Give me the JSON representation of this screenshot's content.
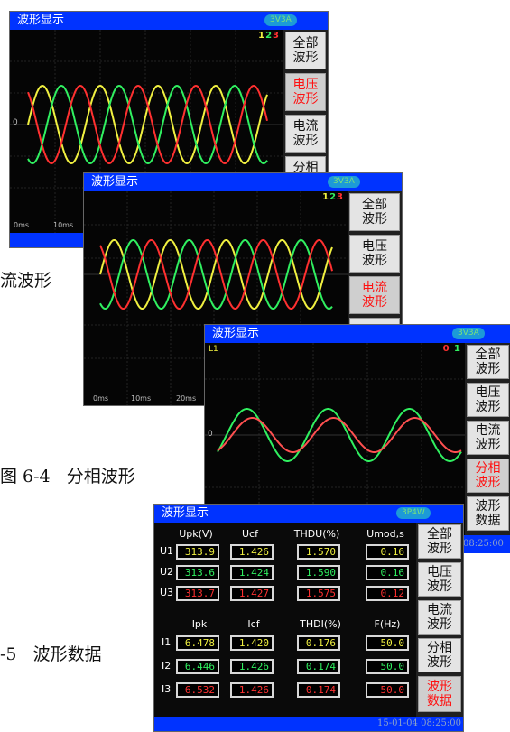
{
  "captions": {
    "c3_frag": "流波形",
    "c4": "图 6-4   分相波形",
    "c5": "-5   波形数据"
  },
  "clock_tail": "08:25:00",
  "screen1": {
    "title": "波形显示",
    "badge": "3V3A",
    "phase_digits": [
      "1",
      "2",
      "3"
    ],
    "zero_label": "0",
    "time_ticks": [
      "0ms",
      "10ms"
    ],
    "buttons": [
      "全部\n波形",
      "电压\n波形",
      "电流\n波形",
      "分相\n波形"
    ],
    "active_button": 1
  },
  "screen2": {
    "title": "波形显示",
    "badge": "3V3A",
    "phase_digits": [
      "1",
      "2",
      "3"
    ],
    "time_ticks": [
      "0ms",
      "10ms",
      "20ms"
    ],
    "buttons": [
      "全部\n波形",
      "电压\n波形",
      "电流\n波形",
      "分相"
    ],
    "active_button": 2
  },
  "screen3": {
    "title": "波形显示",
    "badge": "3V3A",
    "phase_label": "L1",
    "phase_digits": [
      "0",
      "1"
    ],
    "zero_label": "0",
    "buttons": [
      "全部\n波形",
      "电压\n波形",
      "电流\n波形",
      "分相\n波形",
      "波形\n数据"
    ],
    "active_button": 3
  },
  "screen4": {
    "title": "波形显示",
    "badge": "3P4W",
    "headers_u": [
      "Upk(V)",
      "Ucf",
      "THDU(%)",
      "Umod,s"
    ],
    "headers_i": [
      "Ipk",
      "Icf",
      "THDI(%)",
      "F(Hz)"
    ],
    "rows_u": [
      {
        "label": "U1",
        "color": "y",
        "values": [
          "313.9",
          "1.426",
          "1.570",
          "0.16"
        ]
      },
      {
        "label": "U2",
        "color": "g",
        "values": [
          "313.6",
          "1.424",
          "1.590",
          "0.16"
        ]
      },
      {
        "label": "U3",
        "color": "r",
        "values": [
          "313.7",
          "1.427",
          "1.575",
          "0.12"
        ]
      }
    ],
    "rows_i": [
      {
        "label": "I1",
        "color": "y",
        "values": [
          "6.478",
          "1.420",
          "0.176",
          "50.0"
        ]
      },
      {
        "label": "I2",
        "color": "g",
        "values": [
          "6.446",
          "1.426",
          "0.174",
          "50.0"
        ]
      },
      {
        "label": "I3",
        "color": "r",
        "values": [
          "6.532",
          "1.426",
          "0.174",
          "50.0"
        ]
      }
    ],
    "buttons": [
      "全部\n波形",
      "电压\n波形",
      "电流\n波形",
      "分相\n波形",
      "波形\n数据"
    ],
    "active_button": 4,
    "datetime": "15-01-04 08:25:00"
  },
  "colors": {
    "phase1": "#f0f040",
    "phase2": "#30f060",
    "phase3": "#ff3030",
    "title_bar": "#0033ff",
    "active_label": "#ff1010"
  }
}
